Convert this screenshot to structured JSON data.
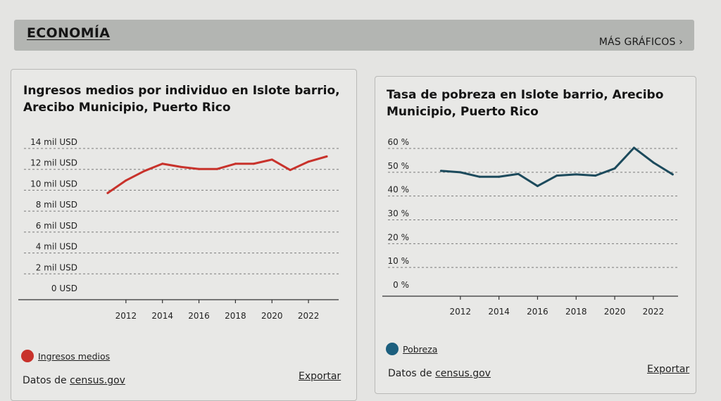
{
  "section": {
    "title": "ECONOMÍA",
    "more_link": "MÁS GRÁFICOS ›"
  },
  "cards": [
    {
      "title": "Ingresos medios por individuo en Islote barrio, Arecibo Municipio, Puerto Rico",
      "legend_label": "Ingresos medios",
      "source_prefix": "Datos de ",
      "source_link": "census.gov",
      "export_label": "Exportar"
    },
    {
      "title": "Tasa de pobreza en Islote barrio, Arecibo Municipio, Puerto Rico",
      "legend_label": "Pobreza",
      "source_prefix": "Datos de ",
      "source_link": "census.gov",
      "export_label": "Exportar"
    }
  ],
  "chart_data": [
    {
      "type": "line",
      "title": "Ingresos medios por individuo en Islote barrio, Arecibo Municipio, Puerto Rico",
      "xlabel": "",
      "ylabel": "",
      "x": [
        2011,
        2012,
        2013,
        2014,
        2015,
        2016,
        2017,
        2018,
        2019,
        2020,
        2021,
        2022,
        2023
      ],
      "xticks": [
        2012,
        2014,
        2016,
        2018,
        2020,
        2022
      ],
      "xtick_labels": [
        "2012",
        "2014",
        "2016",
        "2018",
        "2020",
        "2022"
      ],
      "xlim": [
        2010,
        2023.5
      ],
      "ylim": [
        0,
        14000
      ],
      "yticks": [
        0,
        2000,
        4000,
        6000,
        8000,
        10000,
        12000,
        14000
      ],
      "ytick_labels": [
        "0 USD",
        "2 mil USD",
        "4 mil USD",
        "6 mil USD",
        "8 mil USD",
        "10 mil USD",
        "12 mil USD",
        "14 mil USD"
      ],
      "grid": true,
      "legend_position": "bottom-left",
      "series": [
        {
          "name": "Ingresos medios",
          "color": "#c8322b",
          "values": [
            9600,
            10800,
            11700,
            12400,
            12100,
            11900,
            11900,
            12400,
            12400,
            12800,
            11800,
            12600,
            13100
          ]
        }
      ]
    },
    {
      "type": "line",
      "title": "Tasa de pobreza en Islote barrio, Arecibo Municipio, Puerto Rico",
      "xlabel": "",
      "ylabel": "",
      "x": [
        2011,
        2012,
        2013,
        2014,
        2015,
        2016,
        2017,
        2018,
        2019,
        2020,
        2021,
        2022,
        2023
      ],
      "xticks": [
        2012,
        2014,
        2016,
        2018,
        2020,
        2022
      ],
      "xtick_labels": [
        "2012",
        "2014",
        "2016",
        "2018",
        "2020",
        "2022"
      ],
      "xlim": [
        2010,
        2023.5
      ],
      "ylim": [
        0,
        60
      ],
      "yticks": [
        0,
        10,
        20,
        30,
        40,
        50,
        60
      ],
      "ytick_labels": [
        "0 %",
        "10 %",
        "20 %",
        "30 %",
        "40 %",
        "50 %",
        "60 %"
      ],
      "grid": true,
      "legend_position": "bottom-left",
      "series": [
        {
          "name": "Pobreza",
          "color": "#1c4a5c",
          "values": [
            50.0,
            49.4,
            47.5,
            47.5,
            48.7,
            43.6,
            48.0,
            48.5,
            48.0,
            51.0,
            59.7,
            53.5,
            48.5
          ]
        }
      ]
    }
  ]
}
